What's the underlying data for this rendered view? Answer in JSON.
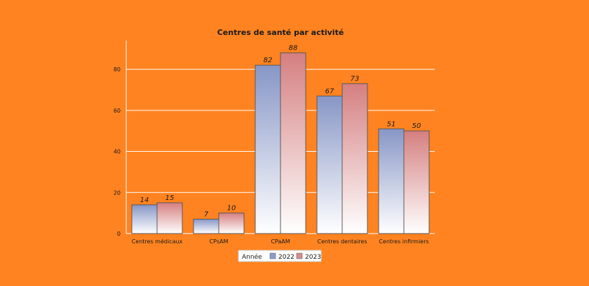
{
  "colors": {
    "background": "#FF8320",
    "series_2022": "#8C9DCB",
    "series_2023": "#D98C8C",
    "gridline": "#FFFFFF",
    "text": "#1A1A1A"
  },
  "chart_data": {
    "type": "bar",
    "title": "Centres de santé par activité",
    "categories": [
      "Centres médicaux",
      "CPsAM",
      "CPaAM",
      "Centres dentaires",
      "Centres infirmiers"
    ],
    "series": [
      {
        "name": "2022",
        "values": [
          14,
          7,
          82,
          67,
          51
        ]
      },
      {
        "name": "2023",
        "values": [
          15,
          10,
          88,
          73,
          50
        ]
      }
    ],
    "ylim": [
      0,
      94
    ],
    "yticks": [
      0,
      20,
      40,
      60,
      80
    ],
    "grid": true,
    "data_labels": true,
    "legend": {
      "title": "Année",
      "position": "bottom-center"
    }
  }
}
